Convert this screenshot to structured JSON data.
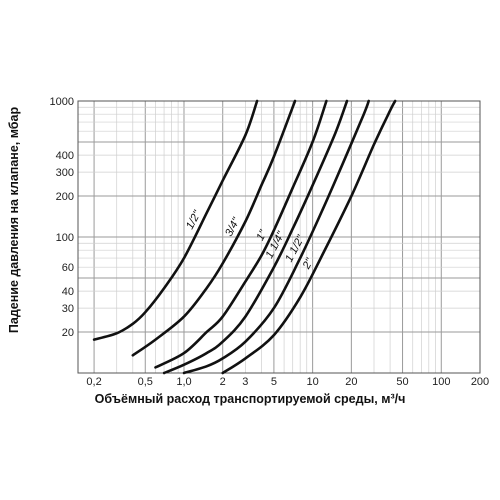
{
  "chart_data": {
    "type": "line",
    "title": "",
    "xlabel": "Объёмный расход транспортируемой среды, м³/ч",
    "ylabel": "Падение давления на клапане, мбар",
    "x_scale": "log",
    "y_scale": "log",
    "xlim": [
      0.15,
      200
    ],
    "ylim": [
      10,
      1000
    ],
    "grid": true,
    "x_ticks": [
      {
        "value": 0.2,
        "label": "0,2"
      },
      {
        "value": 0.5,
        "label": "0,5"
      },
      {
        "value": 1,
        "label": "1,0"
      },
      {
        "value": 2,
        "label": "2"
      },
      {
        "value": 3,
        "label": "3"
      },
      {
        "value": 5,
        "label": "5"
      },
      {
        "value": 10,
        "label": "10"
      },
      {
        "value": 20,
        "label": "20"
      },
      {
        "value": 50,
        "label": "50"
      },
      {
        "value": 100,
        "label": "100"
      },
      {
        "value": 200,
        "label": "200"
      }
    ],
    "y_ticks": [
      {
        "value": 20,
        "label": "20"
      },
      {
        "value": 30,
        "label": "30"
      },
      {
        "value": 40,
        "label": "40"
      },
      {
        "value": 60,
        "label": "60"
      },
      {
        "value": 100,
        "label": "100"
      },
      {
        "value": 200,
        "label": "200"
      },
      {
        "value": 300,
        "label": "300"
      },
      {
        "value": 400,
        "label": "400"
      },
      {
        "value": 1000,
        "label": "1000"
      }
    ],
    "series": [
      {
        "name": "1/2\"",
        "points": [
          [
            0.2,
            17.6
          ],
          [
            0.3,
            19.6
          ],
          [
            0.4,
            23
          ],
          [
            0.5,
            28
          ],
          [
            0.7,
            42
          ],
          [
            1.0,
            70
          ],
          [
            1.5,
            150
          ],
          [
            2.0,
            260
          ],
          [
            3.0,
            560
          ],
          [
            3.7,
            1000
          ]
        ]
      },
      {
        "name": "3/4\"",
        "points": [
          [
            0.4,
            13.5
          ],
          [
            0.6,
            17.6
          ],
          [
            1.0,
            26
          ],
          [
            1.5,
            42
          ],
          [
            2.0,
            64
          ],
          [
            3.0,
            130
          ],
          [
            4.0,
            240
          ],
          [
            5.0,
            390
          ],
          [
            7.3,
            1000
          ]
        ]
      },
      {
        "name": "1\"",
        "points": [
          [
            0.6,
            11
          ],
          [
            1.0,
            14
          ],
          [
            1.5,
            20
          ],
          [
            2.0,
            26
          ],
          [
            3.0,
            47
          ],
          [
            4.0,
            73
          ],
          [
            5.0,
            112
          ],
          [
            7.0,
            230
          ],
          [
            10.0,
            500
          ],
          [
            12.8,
            1000
          ]
        ]
      },
      {
        "name": "1 1/4\"",
        "points": [
          [
            0.7,
            10
          ],
          [
            1.0,
            11.5
          ],
          [
            1.5,
            14
          ],
          [
            2.0,
            17
          ],
          [
            3.0,
            26
          ],
          [
            5.0,
            60
          ],
          [
            7.0,
            115
          ],
          [
            10.0,
            240
          ],
          [
            15.0,
            580
          ],
          [
            18.5,
            1000
          ]
        ]
      },
      {
        "name": "1 1/2\"",
        "points": [
          [
            1.0,
            10
          ],
          [
            1.5,
            11.2
          ],
          [
            2.0,
            12.8
          ],
          [
            3.0,
            17
          ],
          [
            5.0,
            30
          ],
          [
            8.0,
            70
          ],
          [
            12.0,
            160
          ],
          [
            17.0,
            340
          ],
          [
            25.0,
            800
          ],
          [
            27.3,
            1000
          ]
        ]
      },
      {
        "name": "2\"",
        "points": [
          [
            2.0,
            10
          ],
          [
            3.0,
            12.8
          ],
          [
            5.0,
            19
          ],
          [
            8.0,
            36
          ],
          [
            12.0,
            75
          ],
          [
            20.0,
            200
          ],
          [
            30.0,
            480
          ],
          [
            40.0,
            850
          ],
          [
            43.8,
            1000
          ]
        ]
      }
    ]
  }
}
